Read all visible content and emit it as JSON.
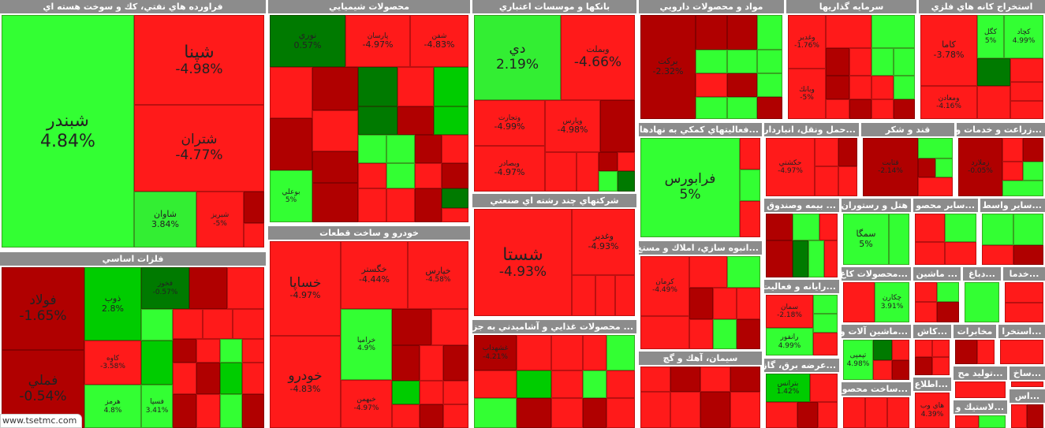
{
  "colors": {
    "red": "#ff1a1a",
    "darkred": "#b00000",
    "brightgreen": "#33ff33",
    "green": "#00cc00",
    "darkgreen": "#007a00",
    "header": "#8c8c8c"
  },
  "footer": {
    "site": "www.tsetmc.com"
  },
  "groups": {
    "petroleum": {
      "title": "فراورده هاي نفتي، كك و سوخت هسته اي",
      "tiles": [
        {
          "n": "شبندر",
          "p": "4.84%"
        },
        {
          "n": "شپنا",
          "p": "-4.98%"
        },
        {
          "n": "شتران",
          "p": "-4.77%"
        },
        {
          "n": "شاوان",
          "p": "3.84%"
        },
        {
          "n": "شبريز",
          "p": "-5%"
        }
      ]
    },
    "chemical": {
      "title": "محصولات شيميايي",
      "tiles": [
        {
          "n": "نوري",
          "p": "0.57%"
        },
        {
          "n": "پارسان",
          "p": "-4.97%"
        },
        {
          "n": "شفن",
          "p": "-4.83%"
        },
        {
          "n": "بوعلي",
          "p": "5%"
        }
      ]
    },
    "banks": {
      "title": "بانكها و موسسات اعتباري",
      "tiles": [
        {
          "n": "دي",
          "p": "2.19%"
        },
        {
          "n": "وبملت",
          "p": "-4.66%"
        },
        {
          "n": "وتجارت",
          "p": "-4.99%"
        },
        {
          "n": "وپارس",
          "p": "-4.98%"
        },
        {
          "n": "وبصادر",
          "p": "-4.97%"
        }
      ]
    },
    "pharma": {
      "title": "مواد و محصولات دارويي",
      "tiles": [
        {
          "n": "بركت",
          "p": "-2.32%"
        }
      ]
    },
    "investment": {
      "title": "سرمايه گذاريها",
      "tiles": [
        {
          "n": "وغدير",
          "p": "-1.76%"
        },
        {
          "n": "وبانك",
          "p": "-5%"
        }
      ]
    },
    "mining": {
      "title": "استخراج كانه هاي فلزي",
      "tiles": [
        {
          "n": "كاما",
          "p": "-3.78%"
        },
        {
          "n": "كگل",
          "p": "5%"
        },
        {
          "n": "كچاد",
          "p": "4.99%"
        },
        {
          "n": "ومعادن",
          "p": "-4.16%"
        }
      ]
    },
    "basic_metals": {
      "title": "فلزات اساسي",
      "tiles": [
        {
          "n": "فولاد",
          "p": "-1.65%"
        },
        {
          "n": "ذوب",
          "p": "2.8%"
        },
        {
          "n": "فخوز",
          "p": "-0.57%"
        },
        {
          "n": "كاوه",
          "p": "-3.58%"
        },
        {
          "n": "هرمز",
          "p": "4.8%"
        },
        {
          "n": "فملي",
          "p": "-0.54%"
        },
        {
          "n": "فسپا",
          "p": "3.41%"
        }
      ]
    },
    "auto": {
      "title": "خودرو و ساخت قطعات",
      "tiles": [
        {
          "n": "خساپا",
          "p": "-4.97%"
        },
        {
          "n": "خگستر",
          "p": "-4.44%"
        },
        {
          "n": "خپارس",
          "p": "-4.58%"
        },
        {
          "n": "خراميا",
          "p": "4.9%"
        },
        {
          "n": "خودرو",
          "p": "-4.83%"
        },
        {
          "n": "خبهمن",
          "p": "-4.97%"
        }
      ]
    },
    "multi": {
      "title": "شركتهاي چند رشته اي صنعتي",
      "tiles": [
        {
          "n": "شستا",
          "p": "-4.93%"
        },
        {
          "n": "وغدير",
          "p": "-4.93%"
        }
      ]
    },
    "support": {
      "title": "...فعاليتهاي كمكي به نهادها",
      "tiles": [
        {
          "n": "فرابورس",
          "p": "5%"
        }
      ]
    },
    "transport": {
      "title": "...حمل ونقل، انباردار",
      "tiles": [
        {
          "n": "حكشتي",
          "p": "-4.97%"
        }
      ]
    },
    "sugar": {
      "title": "قند و شكر",
      "tiles": [
        {
          "n": "قثابت",
          "p": "-2.14%"
        }
      ]
    },
    "agri": {
      "title": "...زراعت و خدمات و",
      "tiles": [
        {
          "n": "زملارد",
          "p": "-0.05%"
        }
      ]
    },
    "food": {
      "title": "... محصولات غذايي و آشاميدني به جز",
      "tiles": [
        {
          "n": "غشهداب",
          "p": "-4.21%"
        }
      ]
    },
    "realestate": {
      "title": "...انبوه سازي، املاك و مستغ",
      "tiles": [
        {
          "n": "كرمان",
          "p": "-4.49%"
        }
      ]
    },
    "insurance": {
      "title": "... بيمه وصندوق"
    },
    "hotel": {
      "title": "هتل و رستوران",
      "tiles": [
        {
          "n": "سمگا",
          "p": "5%"
        }
      ]
    },
    "other_products": {
      "title": "...ساير محصو"
    },
    "intermediary": {
      "title": "...ساير واسط"
    },
    "computer": {
      "title": "...رايانه و فعاليت",
      "tiles": [
        {
          "n": "سمان",
          "p": "-2.18%"
        },
        {
          "n": "رانفور",
          "p": "4.99%"
        }
      ]
    },
    "metal_products": {
      "title": "...محصولات كاغ",
      "tiles": [
        {
          "n": "چكارن",
          "p": "3.91%"
        }
      ]
    },
    "machinery_small": {
      "title": "... ماشين"
    },
    "dabagh": {
      "title": "...دباغ"
    },
    "services": {
      "title": "...خدما"
    },
    "cement": {
      "title": "سيمان، آهك و گچ"
    },
    "machinery": {
      "title": "...ماشين آلات و",
      "tiles": [
        {
          "n": "تپمپی",
          "p": "4.98%"
        }
      ]
    },
    "kashi": {
      "title": "...كاش"
    },
    "telecom": {
      "title": "مخابرات"
    },
    "extraction": {
      "title": "...استخرا"
    },
    "power": {
      "title": "...عرضه برق، گاز",
      "tiles": [
        {
          "n": "بترانس",
          "p": "1.42%"
        }
      ]
    },
    "production": {
      "title": "...توليد مح"
    },
    "sakht": {
      "title": "...ساخ"
    },
    "construction": {
      "title": "...ساخت محصو"
    },
    "information": {
      "title": "...اطلاع",
      "tiles": [
        {
          "n": "هاي وب",
          "p": "4.39%"
        }
      ]
    },
    "plastic": {
      "title": "...لاستيك و"
    },
    "as": {
      "title": "...اس"
    }
  }
}
